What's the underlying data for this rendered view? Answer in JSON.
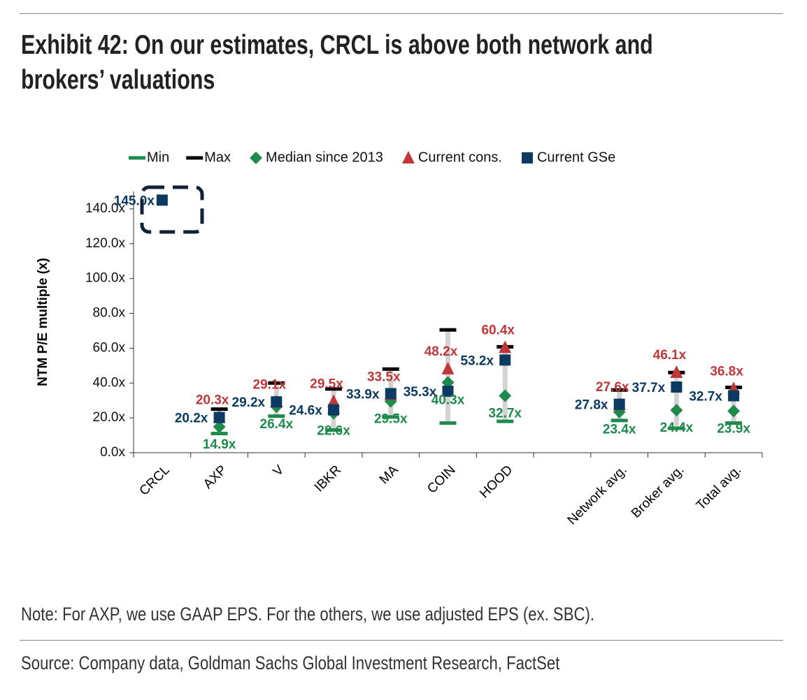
{
  "chart_data": {
    "type": "range-dot",
    "title": "Exhibit 42: On our estimates, CRCL is above both network and brokers’ valuations",
    "ylabel": "NTM P/E multiple (x)",
    "note": "Note: For AXP, we use GAAP EPS. For the others, we use adjusted EPS (ex. SBC).",
    "source": "Source: Company data, Goldman Sachs Global Investment Research, FactSet",
    "categories": [
      "CRCL",
      "AXP",
      "V",
      "IBKR",
      "MA",
      "COIN",
      "HOOD",
      null,
      "Network avg.",
      "Broker avg.",
      "Total avg."
    ],
    "ylim": [
      0,
      150
    ],
    "yticks": [
      {
        "value": 0,
        "label": "0.0x"
      },
      {
        "value": 20,
        "label": "20.0x"
      },
      {
        "value": 40,
        "label": "40.0x"
      },
      {
        "value": 60,
        "label": "60.0x"
      },
      {
        "value": 80,
        "label": "80.0x"
      },
      {
        "value": 100,
        "label": "100.0x"
      },
      {
        "value": 120,
        "label": "120.0x"
      },
      {
        "value": 140,
        "label": "140.0x"
      }
    ],
    "series": [
      {
        "name": "Min",
        "color": "#1e8a4c",
        "marker": "dash",
        "values": [
          null,
          11,
          21,
          13,
          20.5,
          17,
          18,
          null,
          18.5,
          14,
          17
        ]
      },
      {
        "name": "Max",
        "color": "#000000",
        "marker": "dash",
        "values": [
          null,
          25,
          40,
          36.6,
          48,
          70.5,
          60.8,
          null,
          36,
          46,
          37.5
        ]
      },
      {
        "name": "Median since 2013",
        "color": "#1e8a4c",
        "marker": "diamond",
        "values": [
          null,
          14.9,
          26.4,
          22.6,
          29.5,
          40.3,
          32.7,
          null,
          23.4,
          24.4,
          23.9
        ],
        "value_labels": [
          null,
          "14.9x",
          "26.4x",
          "22.6x",
          "29.5x",
          "40.3x",
          "32.7x",
          null,
          "23.4x",
          "24.4x",
          "23.9x"
        ]
      },
      {
        "name": "Current cons.",
        "color": "#c0373a",
        "marker": "triangle",
        "values": [
          null,
          20.3,
          29.1,
          29.5,
          33.5,
          48.2,
          60.4,
          null,
          27.6,
          46.1,
          36.8
        ],
        "value_labels": [
          null,
          "20.3x",
          "29.1x",
          "29.5x",
          "33.5x",
          "48.2x",
          "60.4x",
          null,
          "27.6x",
          "46.1x",
          "36.8x"
        ]
      },
      {
        "name": "Current GSe",
        "color": "#0b3a63",
        "marker": "square",
        "values": [
          145.0,
          20.2,
          29.2,
          24.6,
          33.9,
          35.3,
          53.2,
          null,
          27.8,
          37.7,
          32.7
        ],
        "value_labels": [
          "145.0x",
          "20.2x",
          "29.2x",
          "24.6x",
          "33.9x",
          "35.3x",
          "53.2x",
          null,
          "27.8x",
          "37.7x",
          "32.7x"
        ]
      }
    ]
  }
}
